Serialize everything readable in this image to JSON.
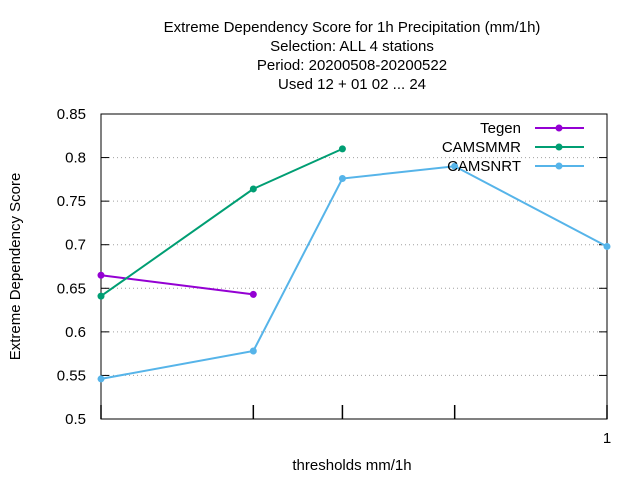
{
  "chart_data": {
    "type": "line",
    "title_lines": [
      "Extreme Dependency Score  for 1h Precipitation (mm/1h)",
      "Selection: ALL      4 stations",
      "Period: 20200508-20200522",
      "Used  12 + 01 02 ... 24"
    ],
    "xlabel": "thresholds mm/1h",
    "ylabel": "Extreme Dependency Score",
    "x_scale": "log",
    "xlim": [
      0.1,
      1
    ],
    "ylim": [
      0.5,
      0.85
    ],
    "y_ticks": [
      {
        "value": 0.5,
        "label": "0.5"
      },
      {
        "value": 0.55,
        "label": "0.55"
      },
      {
        "value": 0.6,
        "label": "0.6"
      },
      {
        "value": 0.65,
        "label": "0.65"
      },
      {
        "value": 0.7,
        "label": "0.7"
      },
      {
        "value": 0.75,
        "label": "0.75"
      },
      {
        "value": 0.8,
        "label": "0.8"
      },
      {
        "value": 0.85,
        "label": "0.85"
      }
    ],
    "x_ticks": [
      {
        "value": 0.1,
        "label": ""
      },
      {
        "value": 0.2,
        "label": ""
      },
      {
        "value": 0.3,
        "label": ""
      },
      {
        "value": 0.5,
        "label": ""
      },
      {
        "value": 1,
        "label": "1"
      }
    ],
    "grid": true,
    "legend_position": "top-right",
    "series": [
      {
        "name": "Tegen",
        "color": "#9400d3",
        "points": [
          [
            0.1,
            0.665
          ],
          [
            0.2,
            0.643
          ]
        ]
      },
      {
        "name": "CAMSMMR",
        "color": "#009e73",
        "points": [
          [
            0.1,
            0.641
          ],
          [
            0.2,
            0.764
          ],
          [
            0.3,
            0.81
          ]
        ]
      },
      {
        "name": "CAMSNRT",
        "color": "#56b4e9",
        "points": [
          [
            0.1,
            0.546
          ],
          [
            0.2,
            0.578
          ],
          [
            0.3,
            0.776
          ],
          [
            0.5,
            0.79
          ],
          [
            1,
            0.698
          ]
        ]
      }
    ]
  }
}
